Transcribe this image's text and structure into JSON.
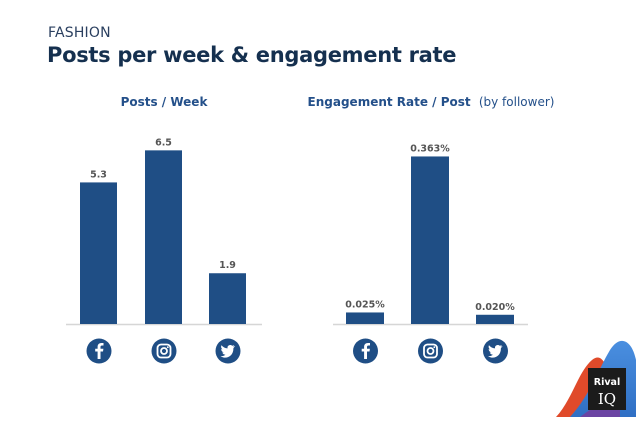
{
  "header": {
    "category": "FASHION",
    "title": "Posts per week & engagement rate"
  },
  "colors": {
    "bar": "#1f4e85",
    "icon": "#1f4e85",
    "axis": "#d6d6d6",
    "title": "#15304f"
  },
  "chart_data": [
    {
      "type": "bar",
      "title": "Posts / Week",
      "title_suffix": "",
      "categories": [
        "Facebook",
        "Instagram",
        "Twitter"
      ],
      "category_icons": [
        "facebook-icon",
        "instagram-icon",
        "twitter-icon"
      ],
      "values": [
        5.3,
        6.5,
        1.9
      ],
      "labels": [
        "5.3",
        "6.5",
        "1.9"
      ],
      "ylim": [
        0,
        7.0
      ],
      "xlabel": "",
      "ylabel": "",
      "grid": false
    },
    {
      "type": "bar",
      "title": "Engagement Rate / Post",
      "title_suffix": "(by follower)",
      "categories": [
        "Facebook",
        "Instagram",
        "Twitter"
      ],
      "category_icons": [
        "facebook-icon",
        "instagram-icon",
        "twitter-icon"
      ],
      "values": [
        0.025,
        0.363,
        0.02
      ],
      "labels": [
        "0.025%",
        "0.363%",
        "0.020%"
      ],
      "ylim": [
        0,
        0.39
      ],
      "xlabel": "",
      "ylabel": "",
      "grid": false
    }
  ],
  "logo": {
    "line1": "Rival",
    "line2": "IQ"
  }
}
